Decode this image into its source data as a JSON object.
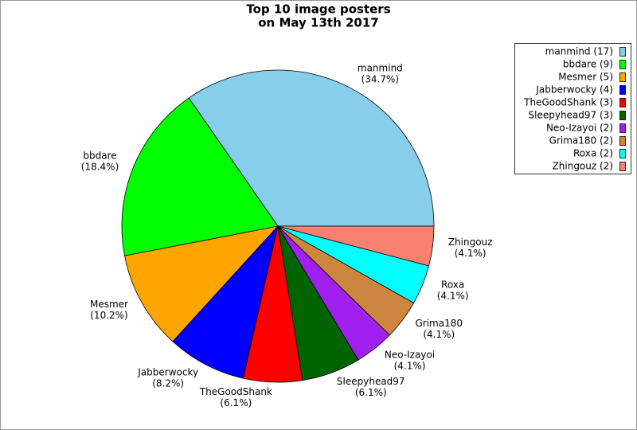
{
  "chart_data": {
    "type": "pie",
    "title": [
      "Top 10 image posters",
      "on May 13th 2017"
    ],
    "categories": [
      "manmind",
      "bbdare",
      "Mesmer",
      "Jabberwocky",
      "TheGoodShank",
      "Sleepyhead97",
      "Neo-Izayoi",
      "Grima180",
      "Roxa",
      "Zhingouz"
    ],
    "values": [
      34.7,
      18.4,
      10.2,
      8.2,
      6.1,
      6.1,
      4.1,
      4.1,
      4.1,
      4.1
    ],
    "value_labels": [
      "(34.7%)",
      "(18.4%)",
      "(10.2%)",
      "(8.2%)",
      "(6.1%)",
      "(6.1%)",
      "(4.1%)",
      "(4.1%)",
      "(4.1%)",
      "(4.1%)"
    ],
    "legend_labels": [
      "manmind (17)",
      "bbdare (9)",
      "Mesmer (5)",
      "Jabberwocky (4)",
      "TheGoodShank (3)",
      "Sleepyhead97 (3)",
      "Neo-Izayoi (2)",
      "Grima180 (2)",
      "Roxa (2)",
      "Zhingouz (2)"
    ],
    "colors": [
      "#87ceeb",
      "#00ff00",
      "#ffa500",
      "#0000ff",
      "#ff0000",
      "#006400",
      "#a020f0",
      "#cd853f",
      "#00ffff",
      "#fa8072"
    ],
    "legend_position": "upper right"
  }
}
